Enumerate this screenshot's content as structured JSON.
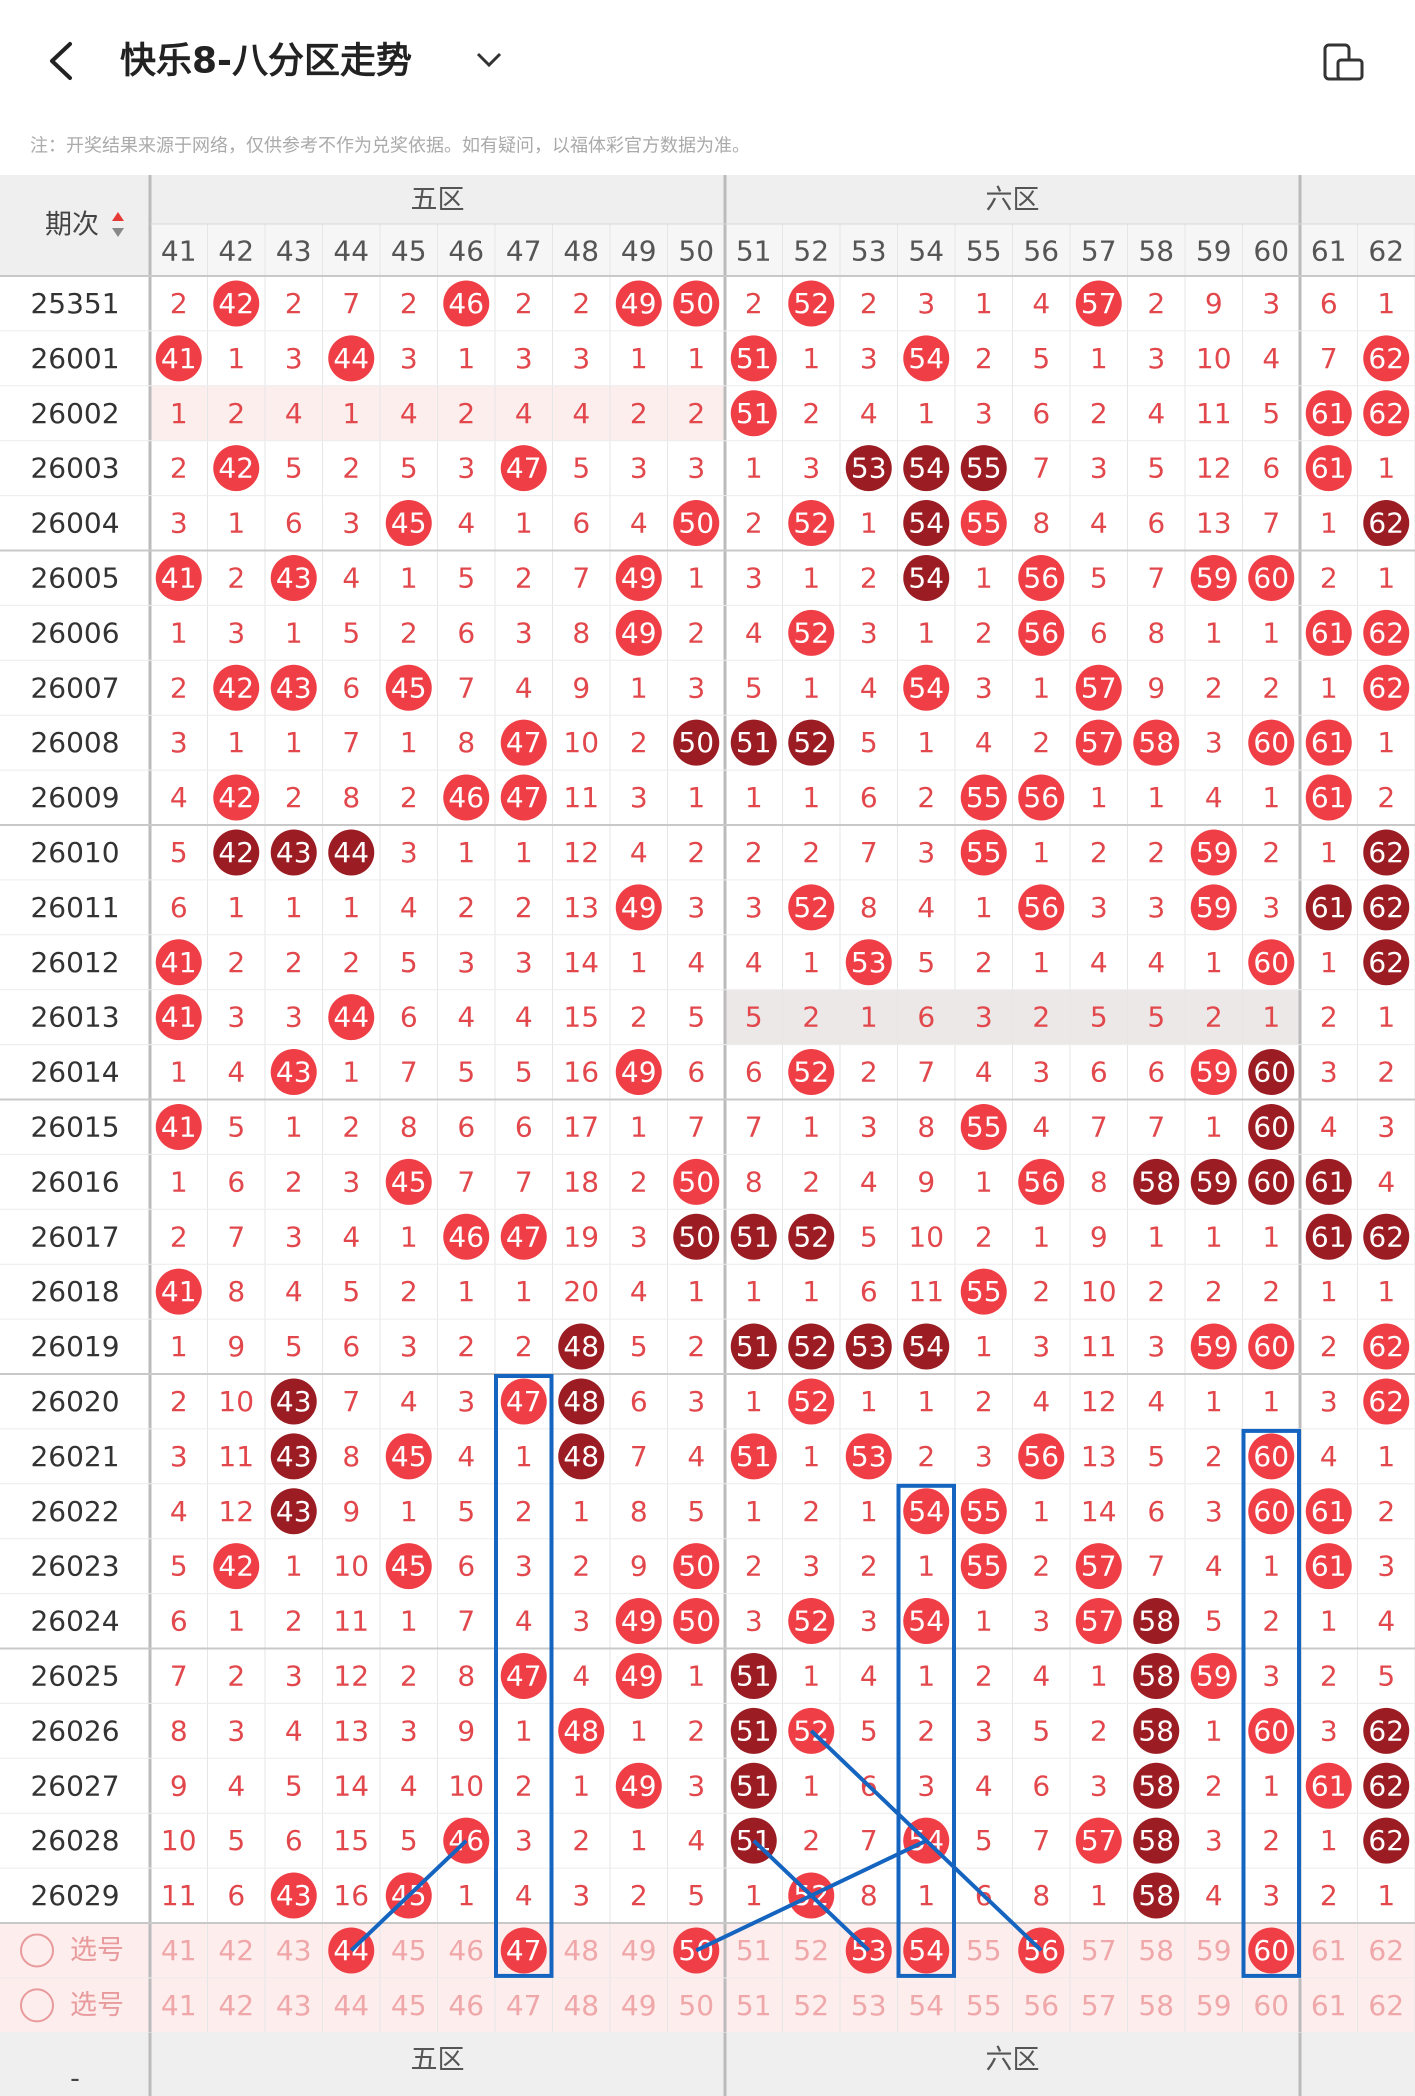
{
  "header": {
    "title": "快乐8-八分区走势",
    "note": "注：开奖结果来源于网络，仅供参考不作为兑奖依据。如有疑问，以福体彩官方数据为准。"
  },
  "table": {
    "period_header": "期次",
    "zones": [
      "五区",
      "六区"
    ],
    "columns": [
      41,
      42,
      43,
      44,
      45,
      46,
      47,
      48,
      49,
      50,
      51,
      52,
      53,
      54,
      55,
      56,
      57,
      58,
      59,
      60,
      61,
      62
    ],
    "rows": [
      {
        "period": "25351",
        "cells": [
          2,
          42,
          2,
          7,
          2,
          46,
          2,
          2,
          49,
          50,
          2,
          52,
          2,
          3,
          1,
          4,
          57,
          2,
          9,
          3,
          6,
          1
        ],
        "dark": []
      },
      {
        "period": "26001",
        "cells": [
          41,
          1,
          3,
          44,
          3,
          1,
          3,
          3,
          1,
          1,
          51,
          1,
          3,
          54,
          2,
          5,
          1,
          3,
          10,
          4,
          7,
          62
        ],
        "dark": []
      },
      {
        "period": "26002",
        "cells": [
          1,
          2,
          4,
          1,
          4,
          2,
          4,
          4,
          2,
          2,
          51,
          2,
          4,
          1,
          3,
          6,
          2,
          4,
          11,
          5,
          61,
          62
        ],
        "dark": []
      },
      {
        "period": "26003",
        "cells": [
          2,
          42,
          5,
          2,
          5,
          3,
          47,
          5,
          3,
          3,
          1,
          3,
          53,
          54,
          55,
          7,
          3,
          5,
          12,
          6,
          61,
          1
        ],
        "dark": [
          12,
          13,
          14
        ]
      },
      {
        "period": "26004",
        "cells": [
          3,
          1,
          6,
          3,
          45,
          4,
          1,
          6,
          4,
          50,
          2,
          52,
          1,
          54,
          55,
          8,
          4,
          6,
          13,
          7,
          1,
          62
        ],
        "dark": [
          13,
          21
        ]
      },
      {
        "period": "26005",
        "cells": [
          41,
          2,
          43,
          4,
          1,
          5,
          2,
          7,
          49,
          1,
          3,
          1,
          2,
          54,
          1,
          56,
          5,
          7,
          59,
          60,
          2,
          1
        ],
        "dark": [
          13
        ]
      },
      {
        "period": "26006",
        "cells": [
          1,
          3,
          1,
          5,
          2,
          6,
          3,
          8,
          49,
          2,
          4,
          52,
          3,
          1,
          2,
          56,
          6,
          8,
          1,
          1,
          61,
          62
        ],
        "dark": []
      },
      {
        "period": "26007",
        "cells": [
          2,
          42,
          43,
          6,
          45,
          7,
          4,
          9,
          1,
          3,
          5,
          1,
          4,
          54,
          3,
          1,
          57,
          9,
          2,
          2,
          1,
          62
        ],
        "dark": []
      },
      {
        "period": "26008",
        "cells": [
          3,
          1,
          1,
          7,
          1,
          8,
          47,
          10,
          2,
          50,
          51,
          52,
          5,
          1,
          4,
          2,
          57,
          58,
          3,
          60,
          61,
          1
        ],
        "dark": [
          9,
          10,
          11
        ]
      },
      {
        "period": "26009",
        "cells": [
          4,
          42,
          2,
          8,
          2,
          46,
          47,
          11,
          3,
          1,
          1,
          1,
          6,
          2,
          55,
          56,
          1,
          1,
          4,
          1,
          61,
          2
        ],
        "dark": []
      },
      {
        "period": "26010",
        "cells": [
          5,
          42,
          43,
          44,
          3,
          1,
          1,
          12,
          4,
          2,
          2,
          2,
          7,
          3,
          55,
          1,
          2,
          2,
          59,
          2,
          1,
          62
        ],
        "dark": [
          1,
          2,
          3,
          21
        ]
      },
      {
        "period": "26011",
        "cells": [
          6,
          1,
          1,
          1,
          4,
          2,
          2,
          13,
          49,
          3,
          3,
          52,
          8,
          4,
          1,
          56,
          3,
          3,
          59,
          3,
          61,
          62
        ],
        "dark": [
          20,
          21
        ]
      },
      {
        "period": "26012",
        "cells": [
          41,
          2,
          2,
          2,
          5,
          3,
          3,
          14,
          1,
          4,
          4,
          1,
          53,
          5,
          2,
          1,
          4,
          4,
          1,
          60,
          1,
          62
        ],
        "dark": [
          21
        ]
      },
      {
        "period": "26013",
        "cells": [
          41,
          3,
          3,
          44,
          6,
          4,
          4,
          15,
          2,
          5,
          5,
          2,
          1,
          6,
          3,
          2,
          5,
          5,
          2,
          1,
          2,
          1
        ],
        "dark": []
      },
      {
        "period": "26014",
        "cells": [
          1,
          4,
          43,
          1,
          7,
          5,
          5,
          16,
          49,
          6,
          6,
          52,
          2,
          7,
          4,
          3,
          6,
          6,
          59,
          60,
          3,
          2
        ],
        "dark": [
          19
        ]
      },
      {
        "period": "26015",
        "cells": [
          41,
          5,
          1,
          2,
          8,
          6,
          6,
          17,
          1,
          7,
          7,
          1,
          3,
          8,
          55,
          4,
          7,
          7,
          1,
          60,
          4,
          3
        ],
        "dark": [
          19
        ]
      },
      {
        "period": "26016",
        "cells": [
          1,
          6,
          2,
          3,
          45,
          7,
          7,
          18,
          2,
          50,
          8,
          2,
          4,
          9,
          1,
          56,
          8,
          58,
          59,
          60,
          61,
          4
        ],
        "dark": [
          17,
          18,
          19,
          20
        ]
      },
      {
        "period": "26017",
        "cells": [
          2,
          7,
          3,
          4,
          1,
          46,
          47,
          19,
          3,
          50,
          51,
          52,
          5,
          10,
          2,
          1,
          9,
          1,
          1,
          1,
          61,
          62
        ],
        "dark": [
          9,
          10,
          11,
          20,
          21
        ]
      },
      {
        "period": "26018",
        "cells": [
          41,
          8,
          4,
          5,
          2,
          1,
          1,
          20,
          4,
          1,
          1,
          1,
          6,
          11,
          55,
          2,
          10,
          2,
          2,
          2,
          1,
          1
        ],
        "dark": []
      },
      {
        "period": "26019",
        "cells": [
          1,
          9,
          5,
          6,
          3,
          2,
          2,
          48,
          5,
          2,
          51,
          52,
          53,
          54,
          1,
          3,
          11,
          3,
          59,
          60,
          2,
          62
        ],
        "dark": [
          7,
          10,
          11,
          12,
          13
        ]
      },
      {
        "period": "26020",
        "cells": [
          2,
          10,
          43,
          7,
          4,
          3,
          47,
          48,
          6,
          3,
          1,
          52,
          1,
          1,
          2,
          4,
          12,
          4,
          1,
          1,
          3,
          62
        ],
        "dark": [
          2,
          7
        ]
      },
      {
        "period": "26021",
        "cells": [
          3,
          11,
          43,
          8,
          45,
          4,
          1,
          48,
          7,
          4,
          51,
          1,
          53,
          2,
          3,
          56,
          13,
          5,
          2,
          60,
          4,
          1
        ],
        "dark": [
          2,
          7
        ]
      },
      {
        "period": "26022",
        "cells": [
          4,
          12,
          43,
          9,
          1,
          5,
          2,
          1,
          8,
          5,
          1,
          2,
          1,
          54,
          55,
          1,
          14,
          6,
          3,
          60,
          61,
          2
        ],
        "dark": [
          2
        ]
      },
      {
        "period": "26023",
        "cells": [
          5,
          42,
          1,
          10,
          45,
          6,
          3,
          2,
          9,
          50,
          2,
          3,
          2,
          1,
          55,
          2,
          57,
          7,
          4,
          1,
          61,
          3
        ],
        "dark": []
      },
      {
        "period": "26024",
        "cells": [
          6,
          1,
          2,
          11,
          1,
          7,
          4,
          3,
          49,
          50,
          3,
          52,
          3,
          54,
          1,
          3,
          57,
          58,
          5,
          2,
          1,
          4
        ],
        "dark": [
          17
        ]
      },
      {
        "period": "26025",
        "cells": [
          7,
          2,
          3,
          12,
          2,
          8,
          47,
          4,
          49,
          1,
          51,
          1,
          4,
          1,
          2,
          4,
          1,
          58,
          59,
          3,
          2,
          5
        ],
        "dark": [
          10,
          17
        ]
      },
      {
        "period": "26026",
        "cells": [
          8,
          3,
          4,
          13,
          3,
          9,
          1,
          48,
          1,
          2,
          51,
          52,
          5,
          2,
          3,
          5,
          2,
          58,
          1,
          60,
          3,
          62
        ],
        "dark": [
          10,
          17,
          21
        ]
      },
      {
        "period": "26027",
        "cells": [
          9,
          4,
          5,
          14,
          4,
          10,
          2,
          1,
          49,
          3,
          51,
          1,
          6,
          3,
          4,
          6,
          3,
          58,
          2,
          1,
          61,
          62
        ],
        "dark": [
          10,
          17,
          21
        ]
      },
      {
        "period": "26028",
        "cells": [
          10,
          5,
          6,
          15,
          5,
          46,
          3,
          2,
          1,
          4,
          51,
          2,
          7,
          54,
          5,
          7,
          57,
          58,
          3,
          2,
          1,
          62
        ],
        "dark": [
          10,
          17,
          21
        ]
      },
      {
        "period": "26029",
        "cells": [
          11,
          6,
          43,
          16,
          45,
          1,
          4,
          3,
          2,
          5,
          1,
          52,
          8,
          1,
          6,
          8,
          1,
          58,
          4,
          3,
          2,
          1
        ],
        "dark": [
          17
        ]
      }
    ],
    "select_rows": [
      {
        "label": "选号",
        "cells": [
          41,
          42,
          43,
          44,
          45,
          46,
          47,
          48,
          49,
          50,
          51,
          52,
          53,
          54,
          55,
          56,
          57,
          58,
          59,
          60,
          61,
          62
        ],
        "selected": [
          3,
          6,
          9,
          12,
          13,
          15,
          19
        ]
      },
      {
        "label": "选号",
        "cells": [
          41,
          42,
          43,
          44,
          45,
          46,
          47,
          48,
          49,
          50,
          51,
          52,
          53,
          54,
          55,
          56,
          57,
          58,
          59,
          60,
          61,
          62
        ],
        "selected": []
      }
    ],
    "footer_left": "-",
    "footer_zones": [
      "五区",
      "六区"
    ]
  }
}
